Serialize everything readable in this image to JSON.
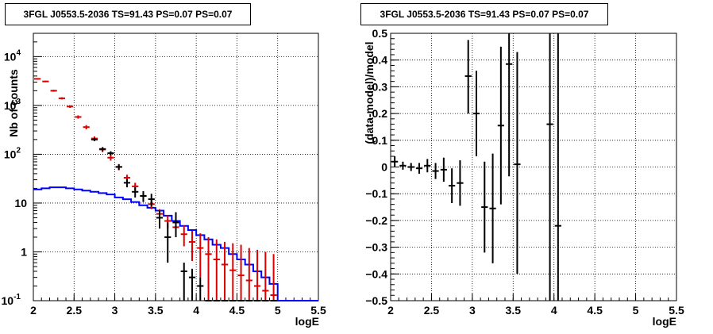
{
  "chart_data": [
    {
      "type": "line",
      "title": "3FGL J0553.5-2036 TS=91.43 PS=0.07 PS=0.07",
      "xlabel": "logE",
      "ylabel": "Nb of counts",
      "xlim": [
        2,
        5.5
      ],
      "ylim": [
        0.1,
        30000
      ],
      "yscale": "log",
      "grid": true,
      "x_ticks": [
        "2",
        "2.5",
        "3",
        "3.5",
        "4",
        "4.5",
        "5",
        "5.5"
      ],
      "y_ticks": [
        {
          "value": 0.1,
          "label": "10",
          "exp": "-1"
        },
        {
          "value": 1,
          "label": "1",
          "exp": ""
        },
        {
          "value": 10,
          "label": "10",
          "exp": ""
        },
        {
          "value": 100,
          "label": "10",
          "exp": "2"
        },
        {
          "value": 1000,
          "label": "10",
          "exp": "3"
        },
        {
          "value": 10000,
          "label": "10",
          "exp": "4"
        }
      ],
      "series": [
        {
          "color": "#0000ff",
          "style": "step",
          "bin_width": 0.1,
          "x": [
            2.05,
            2.15,
            2.25,
            2.35,
            2.45,
            2.55,
            2.65,
            2.75,
            2.85,
            2.95,
            3.05,
            3.15,
            3.25,
            3.35,
            3.45,
            3.55,
            3.65,
            3.75,
            3.85,
            3.95,
            4.05,
            4.15,
            4.25,
            4.35,
            4.45,
            4.55,
            4.65,
            4.75,
            4.85,
            4.95,
            5.05,
            5.15,
            5.25,
            5.35,
            5.45
          ],
          "y": [
            19,
            20,
            21,
            21,
            20,
            19,
            18,
            17,
            16,
            15,
            13,
            12,
            10.5,
            9,
            8,
            7,
            5.5,
            4.3,
            3.4,
            2.8,
            2.2,
            1.8,
            1.4,
            1.2,
            0.9,
            0.7,
            0.55,
            0.4,
            0.3,
            0.22,
            0.1,
            0.1,
            0.1,
            0.1,
            0.1
          ]
        },
        {
          "color": "#dd0000",
          "style": "errorbar",
          "x": [
            2.05,
            2.15,
            2.25,
            2.35,
            2.45,
            2.55,
            2.65,
            2.75,
            2.85,
            2.95,
            3.05,
            3.15,
            3.25,
            3.35,
            3.45,
            3.55,
            3.65,
            3.75,
            3.85,
            3.95,
            4.05,
            4.15,
            4.25,
            4.35,
            4.45,
            4.55,
            4.65,
            4.75,
            4.85,
            4.95
          ],
          "y": [
            3500,
            3100,
            2000,
            1400,
            950,
            580,
            360,
            210,
            125,
            85,
            55,
            33,
            22,
            14,
            9.5,
            6,
            4.3,
            3.2,
            2.3,
            1.6,
            1.2,
            0.9,
            0.7,
            0.55,
            0.42,
            0.33,
            0.26,
            0.2,
            0.16,
            0.13
          ],
          "ylo": [
            3380,
            2990,
            1910,
            1330,
            890,
            535,
            325,
            188,
            110,
            74,
            47,
            28,
            18,
            11,
            7.5,
            4.3,
            3,
            2,
            1.3,
            0.65,
            0.3,
            0.1,
            0.1,
            0.1,
            0.1,
            0.1,
            0.1,
            0.1,
            0.1,
            0.1
          ],
          "yhi": [
            3620,
            3210,
            2090,
            1470,
            1010,
            625,
            395,
            232,
            140,
            96,
            63,
            38,
            26,
            17,
            11.5,
            7.5,
            5.6,
            4.6,
            3.5,
            2.7,
            2.4,
            2,
            1.8,
            1.6,
            1.5,
            1.4,
            1.2,
            1.1,
            1,
            0.9
          ]
        },
        {
          "color": "#000000",
          "style": "errorbar",
          "x": [
            2.75,
            2.85,
            2.95,
            3.05,
            3.15,
            3.25,
            3.35,
            3.45,
            3.55,
            3.65,
            3.75,
            3.85,
            3.95,
            4.05,
            4.15,
            4.25,
            4.35,
            4.45,
            4.55,
            4.65,
            4.75,
            4.85,
            4.95
          ],
          "y": [
            200,
            128,
            105,
            55,
            26,
            17,
            14,
            12,
            5,
            2,
            4,
            0.4,
            0.3,
            0.2,
            0.1,
            0.1,
            0.1,
            0.1,
            0.1,
            0.1,
            0.1,
            0.1,
            0.1
          ],
          "ylo": [
            186,
            117,
            95,
            48,
            21,
            13,
            10.5,
            8.5,
            3,
            0.6,
            2,
            0.1,
            0.1,
            0.1,
            0.1,
            0.1,
            0.1,
            0.1,
            0.1,
            0.1,
            0.1,
            0.1,
            0.1
          ],
          "yhi": [
            214,
            139,
            115,
            62,
            31,
            21,
            17.5,
            15.5,
            7,
            4,
            6.5,
            0.6,
            0.45,
            0.3,
            0.1,
            0.1,
            0.1,
            0.1,
            0.1,
            0.1,
            0.1,
            0.1,
            0.1
          ]
        }
      ]
    },
    {
      "type": "scatter",
      "title": "3FGL J0553.5-2036 TS=91.43 PS=0.07 PS=0.07",
      "xlabel": "logE",
      "ylabel": "(data-model)/model",
      "xlim": [
        2,
        5.5
      ],
      "ylim": [
        -0.5,
        0.5
      ],
      "grid": true,
      "x_ticks": [
        "2",
        "2.5",
        "3",
        "3.5",
        "4",
        "4.5",
        "5",
        "5.5"
      ],
      "y_ticks": [
        "−0.5",
        "−0.4",
        "−0.3",
        "−0.2",
        "−0.1",
        "0",
        "0.1",
        "0.2",
        "0.3",
        "0.4",
        "0.5"
      ],
      "series": [
        {
          "color": "#000000",
          "style": "errorbar",
          "x": [
            2.05,
            2.15,
            2.25,
            2.35,
            2.45,
            2.55,
            2.65,
            2.75,
            2.85,
            2.95,
            3.05,
            3.15,
            3.25,
            3.35,
            3.45,
            3.55,
            3.95,
            4.05
          ],
          "y": [
            0.02,
            0.005,
            0.0,
            -0.005,
            0.005,
            -0.015,
            -0.01,
            -0.07,
            -0.06,
            0.34,
            0.2,
            -0.15,
            -0.155,
            0.155,
            0.385,
            0.01,
            0.16,
            -0.22
          ],
          "ylo": [
            0.0,
            -0.01,
            -0.015,
            -0.025,
            -0.02,
            -0.045,
            -0.055,
            -0.135,
            -0.145,
            0.2,
            0.04,
            -0.32,
            -0.36,
            -0.14,
            -0.035,
            -0.4,
            -0.5,
            -0.5
          ],
          "yhi": [
            0.04,
            0.02,
            0.015,
            0.015,
            0.03,
            0.015,
            0.035,
            -0.005,
            0.025,
            0.475,
            0.36,
            0.02,
            0.05,
            0.45,
            0.5,
            0.43,
            0.5,
            0.5
          ]
        }
      ]
    }
  ]
}
